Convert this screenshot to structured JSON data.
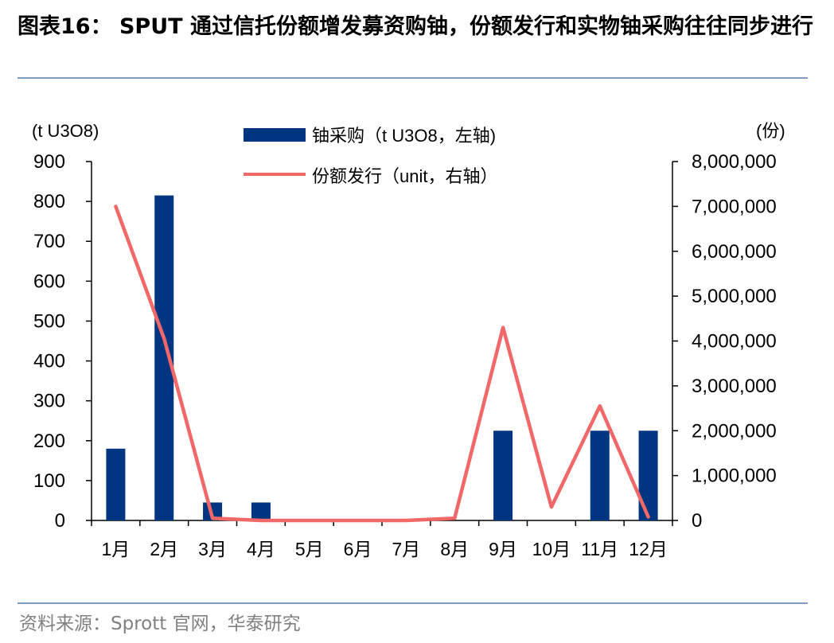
{
  "title": "图表16：  SPUT 通过信托份额增发募资购铀，份额发行和实物铀采购往往同步进行",
  "source": "资料来源：Sprott 官网，华泰研究",
  "colors": {
    "bar": "#003580",
    "line": "#f26767",
    "rule": "#7f9bbd",
    "source": "#808080"
  },
  "chart_data": {
    "type": "bar+line",
    "categories": [
      "1月",
      "2月",
      "3月",
      "4月",
      "5月",
      "6月",
      "7月",
      "8月",
      "9月",
      "10月",
      "11月",
      "12月"
    ],
    "left_axis": {
      "label": "(t U3O8)",
      "range": [
        0,
        900
      ],
      "ticks": [
        "0",
        "100",
        "200",
        "300",
        "400",
        "500",
        "600",
        "700",
        "800",
        "900"
      ]
    },
    "right_axis": {
      "label": "(份)",
      "range": [
        0,
        8000000
      ],
      "ticks": [
        "0",
        "1,000,000",
        "2,000,000",
        "3,000,000",
        "4,000,000",
        "5,000,000",
        "6,000,000",
        "7,000,000",
        "8,000,000"
      ]
    },
    "legend_position": "top-center",
    "series": [
      {
        "name": "铀采购（t U3O8，左轴)",
        "type": "bar",
        "axis": "left",
        "values": [
          180,
          815,
          45,
          45,
          0,
          0,
          0,
          0,
          225,
          0,
          225,
          225
        ]
      },
      {
        "name": "份额发行（unit，右轴）",
        "type": "line",
        "axis": "right",
        "values": [
          7000000,
          4050000,
          50000,
          0,
          0,
          0,
          0,
          50000,
          4300000,
          300000,
          2550000,
          80000
        ]
      }
    ]
  }
}
